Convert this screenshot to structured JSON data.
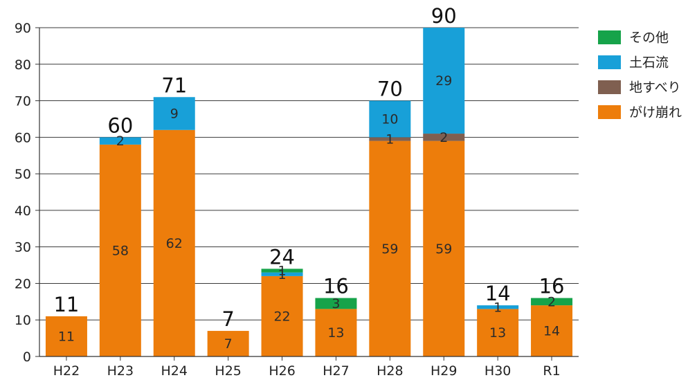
{
  "chart_data": {
    "type": "bar",
    "stacked": true,
    "categories": [
      "H22",
      "H23",
      "H24",
      "H25",
      "H26",
      "H27",
      "H28",
      "H29",
      "H30",
      "R1"
    ],
    "series": [
      {
        "name": "がけ崩れ",
        "color": "#ED7D0B",
        "values": [
          11,
          58,
          62,
          7,
          22,
          13,
          59,
          59,
          13,
          14
        ]
      },
      {
        "name": "地すべり",
        "color": "#7F5F50",
        "values": [
          0,
          0,
          0,
          0,
          0,
          0,
          1,
          2,
          0,
          0
        ]
      },
      {
        "name": "土石流",
        "color": "#18A0D8",
        "values": [
          0,
          2,
          9,
          0,
          1,
          0,
          10,
          29,
          1,
          0
        ]
      },
      {
        "name": "その他",
        "color": "#16A34A",
        "values": [
          0,
          0,
          0,
          0,
          1,
          3,
          0,
          0,
          0,
          2
        ]
      }
    ],
    "totals": [
      11,
      60,
      71,
      7,
      24,
      16,
      70,
      90,
      14,
      16
    ],
    "ylim": [
      0,
      90
    ],
    "yticks": [
      0,
      10,
      20,
      30,
      40,
      50,
      60,
      70,
      80,
      90
    ],
    "grid": true,
    "legend_position": "right",
    "legend_order": [
      "その他",
      "土石流",
      "地すべり",
      "がけ崩れ"
    ],
    "title": "",
    "xlabel": "",
    "ylabel": ""
  }
}
